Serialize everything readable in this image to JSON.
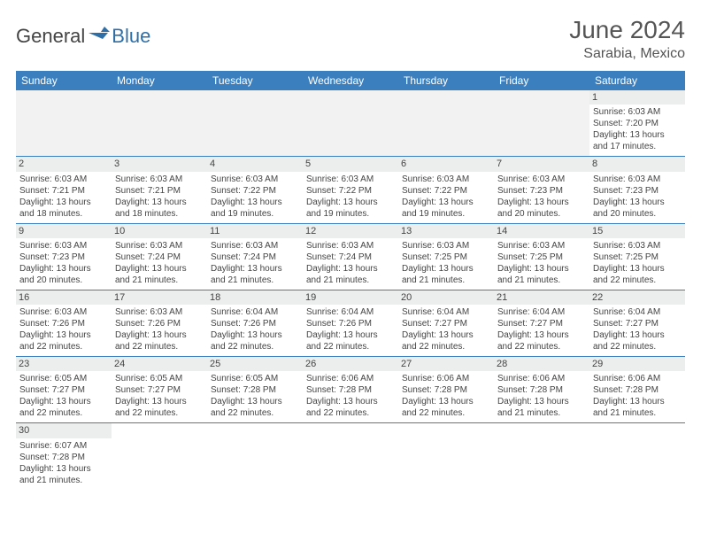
{
  "logo": {
    "text1": "General",
    "text2": "Blue"
  },
  "title": "June 2024",
  "location": "Sarabia, Mexico",
  "colors": {
    "header_bg": "#3b7fbf",
    "header_text": "#ffffff",
    "daynum_bg": "#eceded",
    "border": "#3b7fbf",
    "blank_bg": "#f2f2f2",
    "text": "#444444",
    "logo_blue": "#2f6fa8"
  },
  "day_headers": [
    "Sunday",
    "Monday",
    "Tuesday",
    "Wednesday",
    "Thursday",
    "Friday",
    "Saturday"
  ],
  "weeks": [
    [
      null,
      null,
      null,
      null,
      null,
      null,
      {
        "n": "1",
        "sr": "Sunrise: 6:03 AM",
        "ss": "Sunset: 7:20 PM",
        "dl": "Daylight: 13 hours and 17 minutes."
      }
    ],
    [
      {
        "n": "2",
        "sr": "Sunrise: 6:03 AM",
        "ss": "Sunset: 7:21 PM",
        "dl": "Daylight: 13 hours and 18 minutes."
      },
      {
        "n": "3",
        "sr": "Sunrise: 6:03 AM",
        "ss": "Sunset: 7:21 PM",
        "dl": "Daylight: 13 hours and 18 minutes."
      },
      {
        "n": "4",
        "sr": "Sunrise: 6:03 AM",
        "ss": "Sunset: 7:22 PM",
        "dl": "Daylight: 13 hours and 19 minutes."
      },
      {
        "n": "5",
        "sr": "Sunrise: 6:03 AM",
        "ss": "Sunset: 7:22 PM",
        "dl": "Daylight: 13 hours and 19 minutes."
      },
      {
        "n": "6",
        "sr": "Sunrise: 6:03 AM",
        "ss": "Sunset: 7:22 PM",
        "dl": "Daylight: 13 hours and 19 minutes."
      },
      {
        "n": "7",
        "sr": "Sunrise: 6:03 AM",
        "ss": "Sunset: 7:23 PM",
        "dl": "Daylight: 13 hours and 20 minutes."
      },
      {
        "n": "8",
        "sr": "Sunrise: 6:03 AM",
        "ss": "Sunset: 7:23 PM",
        "dl": "Daylight: 13 hours and 20 minutes."
      }
    ],
    [
      {
        "n": "9",
        "sr": "Sunrise: 6:03 AM",
        "ss": "Sunset: 7:23 PM",
        "dl": "Daylight: 13 hours and 20 minutes."
      },
      {
        "n": "10",
        "sr": "Sunrise: 6:03 AM",
        "ss": "Sunset: 7:24 PM",
        "dl": "Daylight: 13 hours and 21 minutes."
      },
      {
        "n": "11",
        "sr": "Sunrise: 6:03 AM",
        "ss": "Sunset: 7:24 PM",
        "dl": "Daylight: 13 hours and 21 minutes."
      },
      {
        "n": "12",
        "sr": "Sunrise: 6:03 AM",
        "ss": "Sunset: 7:24 PM",
        "dl": "Daylight: 13 hours and 21 minutes."
      },
      {
        "n": "13",
        "sr": "Sunrise: 6:03 AM",
        "ss": "Sunset: 7:25 PM",
        "dl": "Daylight: 13 hours and 21 minutes."
      },
      {
        "n": "14",
        "sr": "Sunrise: 6:03 AM",
        "ss": "Sunset: 7:25 PM",
        "dl": "Daylight: 13 hours and 21 minutes."
      },
      {
        "n": "15",
        "sr": "Sunrise: 6:03 AM",
        "ss": "Sunset: 7:25 PM",
        "dl": "Daylight: 13 hours and 22 minutes."
      }
    ],
    [
      {
        "n": "16",
        "sr": "Sunrise: 6:03 AM",
        "ss": "Sunset: 7:26 PM",
        "dl": "Daylight: 13 hours and 22 minutes."
      },
      {
        "n": "17",
        "sr": "Sunrise: 6:03 AM",
        "ss": "Sunset: 7:26 PM",
        "dl": "Daylight: 13 hours and 22 minutes."
      },
      {
        "n": "18",
        "sr": "Sunrise: 6:04 AM",
        "ss": "Sunset: 7:26 PM",
        "dl": "Daylight: 13 hours and 22 minutes."
      },
      {
        "n": "19",
        "sr": "Sunrise: 6:04 AM",
        "ss": "Sunset: 7:26 PM",
        "dl": "Daylight: 13 hours and 22 minutes."
      },
      {
        "n": "20",
        "sr": "Sunrise: 6:04 AM",
        "ss": "Sunset: 7:27 PM",
        "dl": "Daylight: 13 hours and 22 minutes."
      },
      {
        "n": "21",
        "sr": "Sunrise: 6:04 AM",
        "ss": "Sunset: 7:27 PM",
        "dl": "Daylight: 13 hours and 22 minutes."
      },
      {
        "n": "22",
        "sr": "Sunrise: 6:04 AM",
        "ss": "Sunset: 7:27 PM",
        "dl": "Daylight: 13 hours and 22 minutes."
      }
    ],
    [
      {
        "n": "23",
        "sr": "Sunrise: 6:05 AM",
        "ss": "Sunset: 7:27 PM",
        "dl": "Daylight: 13 hours and 22 minutes."
      },
      {
        "n": "24",
        "sr": "Sunrise: 6:05 AM",
        "ss": "Sunset: 7:27 PM",
        "dl": "Daylight: 13 hours and 22 minutes."
      },
      {
        "n": "25",
        "sr": "Sunrise: 6:05 AM",
        "ss": "Sunset: 7:28 PM",
        "dl": "Daylight: 13 hours and 22 minutes."
      },
      {
        "n": "26",
        "sr": "Sunrise: 6:06 AM",
        "ss": "Sunset: 7:28 PM",
        "dl": "Daylight: 13 hours and 22 minutes."
      },
      {
        "n": "27",
        "sr": "Sunrise: 6:06 AM",
        "ss": "Sunset: 7:28 PM",
        "dl": "Daylight: 13 hours and 22 minutes."
      },
      {
        "n": "28",
        "sr": "Sunrise: 6:06 AM",
        "ss": "Sunset: 7:28 PM",
        "dl": "Daylight: 13 hours and 21 minutes."
      },
      {
        "n": "29",
        "sr": "Sunrise: 6:06 AM",
        "ss": "Sunset: 7:28 PM",
        "dl": "Daylight: 13 hours and 21 minutes."
      }
    ],
    [
      {
        "n": "30",
        "sr": "Sunrise: 6:07 AM",
        "ss": "Sunset: 7:28 PM",
        "dl": "Daylight: 13 hours and 21 minutes."
      },
      null,
      null,
      null,
      null,
      null,
      null
    ]
  ]
}
